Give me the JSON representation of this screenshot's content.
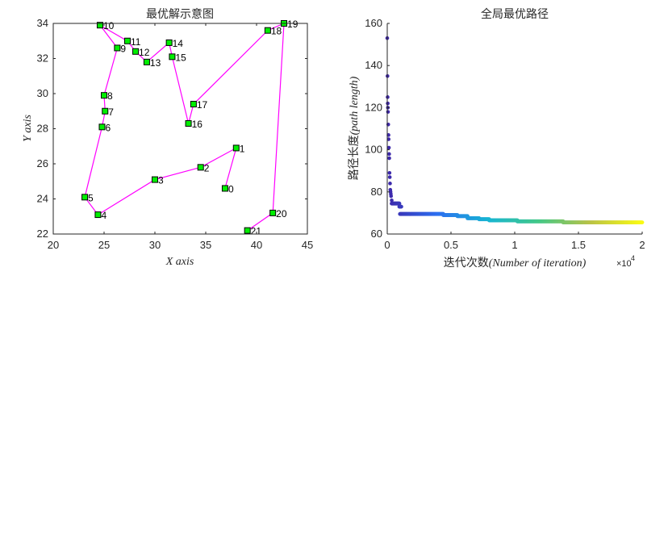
{
  "colors": {
    "route": "#ff00ff",
    "node_fill": "#00ee00",
    "node_edge": "#000000",
    "axis": "#262626",
    "colormap": [
      "#3e26a8",
      "#2c6ef0",
      "#17b5d3",
      "#44c887",
      "#b9c247",
      "#f9fa14"
    ]
  },
  "chart_data": [
    {
      "type": "line",
      "title": "最优解示意图",
      "xlabel": "X axis",
      "ylabel": "Y axis",
      "xlim": [
        20,
        45
      ],
      "ylim": [
        22,
        34
      ],
      "xticks": [
        20,
        25,
        30,
        35,
        40,
        45
      ],
      "yticks": [
        22,
        24,
        26,
        28,
        30,
        32,
        34
      ],
      "grid": false,
      "nodes": [
        {
          "label": "0",
          "x": 36.9,
          "y": 24.6
        },
        {
          "label": "1",
          "x": 38.0,
          "y": 26.9
        },
        {
          "label": "2",
          "x": 34.5,
          "y": 25.8
        },
        {
          "label": "3",
          "x": 30.0,
          "y": 25.1
        },
        {
          "label": "4",
          "x": 24.4,
          "y": 23.1
        },
        {
          "label": "5",
          "x": 23.1,
          "y": 24.1
        },
        {
          "label": "6",
          "x": 24.8,
          "y": 28.1
        },
        {
          "label": "7",
          "x": 25.1,
          "y": 29.0
        },
        {
          "label": "8",
          "x": 25.0,
          "y": 29.9
        },
        {
          "label": "9",
          "x": 26.3,
          "y": 32.6
        },
        {
          "label": "10",
          "x": 24.6,
          "y": 33.9
        },
        {
          "label": "11",
          "x": 27.3,
          "y": 33.0
        },
        {
          "label": "12",
          "x": 28.1,
          "y": 32.4
        },
        {
          "label": "13",
          "x": 29.2,
          "y": 31.8
        },
        {
          "label": "14",
          "x": 31.4,
          "y": 32.9
        },
        {
          "label": "15",
          "x": 31.7,
          "y": 32.1
        },
        {
          "label": "16",
          "x": 33.3,
          "y": 28.3
        },
        {
          "label": "17",
          "x": 33.8,
          "y": 29.4
        },
        {
          "label": "18",
          "x": 41.1,
          "y": 33.6
        },
        {
          "label": "19",
          "x": 42.7,
          "y": 34.0
        },
        {
          "label": "20",
          "x": 41.6,
          "y": 23.2
        },
        {
          "label": "21",
          "x": 39.1,
          "y": 22.2
        }
      ],
      "route": [
        "0",
        "1",
        "2",
        "3",
        "4",
        "5",
        "6",
        "7",
        "8",
        "9",
        "10",
        "11",
        "12",
        "13",
        "14",
        "15",
        "16",
        "17",
        "18",
        "19",
        "20",
        "21"
      ]
    },
    {
      "type": "scatter",
      "title": "全局最优路径",
      "xlabel_cn": "迭代次数",
      "xlabel": "(Number of iteration)",
      "ylabel_cn": "路径长度",
      "ylabel": "(path length)",
      "xlim": [
        0,
        20000
      ],
      "ylim": [
        60,
        160
      ],
      "xticks": [
        0,
        5000,
        10000,
        15000,
        20000
      ],
      "xtick_labels": [
        "0",
        "0.5",
        "1",
        "1.5",
        "2"
      ],
      "x_exponent_base": "×10",
      "x_exponent_power": "4",
      "yticks": [
        60,
        80,
        100,
        120,
        140,
        160
      ],
      "grid": false,
      "early_points": [
        {
          "x": 0,
          "y": 153
        },
        {
          "x": 20,
          "y": 135
        },
        {
          "x": 30,
          "y": 125
        },
        {
          "x": 40,
          "y": 122
        },
        {
          "x": 50,
          "y": 120
        },
        {
          "x": 60,
          "y": 118
        },
        {
          "x": 80,
          "y": 112
        },
        {
          "x": 100,
          "y": 107
        },
        {
          "x": 110,
          "y": 105
        },
        {
          "x": 130,
          "y": 101
        },
        {
          "x": 150,
          "y": 98
        },
        {
          "x": 160,
          "y": 96
        },
        {
          "x": 180,
          "y": 89
        },
        {
          "x": 200,
          "y": 87
        },
        {
          "x": 220,
          "y": 84
        },
        {
          "x": 240,
          "y": 81
        },
        {
          "x": 260,
          "y": 80
        },
        {
          "x": 280,
          "y": 79
        },
        {
          "x": 300,
          "y": 78
        },
        {
          "x": 350,
          "y": 76
        }
      ],
      "steps": [
        {
          "x_start": 350,
          "x_end": 950,
          "y": 74.5
        },
        {
          "x_start": 950,
          "x_end": 1100,
          "y": 73.0
        },
        {
          "x_start": 1000,
          "x_end": 4400,
          "y": 69.5
        },
        {
          "x_start": 4400,
          "x_end": 5500,
          "y": 69.0
        },
        {
          "x_start": 5500,
          "x_end": 6300,
          "y": 68.5
        },
        {
          "x_start": 6300,
          "x_end": 7200,
          "y": 67.5
        },
        {
          "x_start": 7200,
          "x_end": 8000,
          "y": 67.0
        },
        {
          "x_start": 8000,
          "x_end": 10200,
          "y": 66.5
        },
        {
          "x_start": 10200,
          "x_end": 13800,
          "y": 66.0
        },
        {
          "x_start": 13800,
          "x_end": 20000,
          "y": 65.5
        }
      ]
    }
  ]
}
